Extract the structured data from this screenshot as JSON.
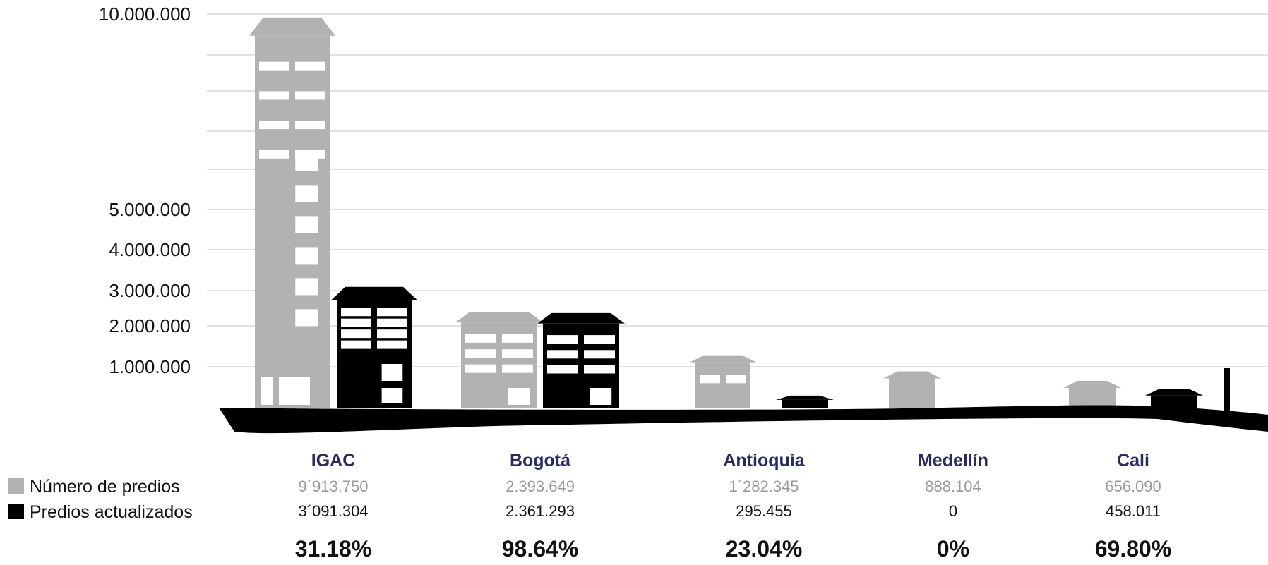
{
  "chart_data": {
    "type": "bar",
    "categories": [
      "IGAC",
      "Bogotá",
      "Antioquia",
      "Medellín",
      "Cali"
    ],
    "series": [
      {
        "name": "Número de predios",
        "color": "#b2b2b2",
        "values": [
          9913750,
          2393649,
          1282345,
          888104,
          656090
        ],
        "labels": [
          "9´913.750",
          "2.393.649",
          "1´282.345",
          "888.104",
          "656.090"
        ]
      },
      {
        "name": "Predios actualizados",
        "color": "#000000",
        "values": [
          3091304,
          2361293,
          295455,
          0,
          458011
        ],
        "labels": [
          "3´091.304",
          "2.361.293",
          "295.455",
          "0",
          "458.011"
        ]
      }
    ],
    "percentages": [
      "31.18%",
      "98.64%",
      "23.04%",
      "0%",
      "69.80%"
    ],
    "yticks": [
      {
        "value": 1000000,
        "label": "1.000.000"
      },
      {
        "value": 2000000,
        "label": "2.000.000"
      },
      {
        "value": 3000000,
        "label": "3.000.000"
      },
      {
        "value": 4000000,
        "label": "4.000.000"
      },
      {
        "value": 5000000,
        "label": "5.000.000"
      },
      {
        "value": 10000000,
        "label": "10.000.000"
      }
    ],
    "ylim": [
      0,
      10000000
    ],
    "grid": true,
    "legend_position": "bottom-left"
  }
}
